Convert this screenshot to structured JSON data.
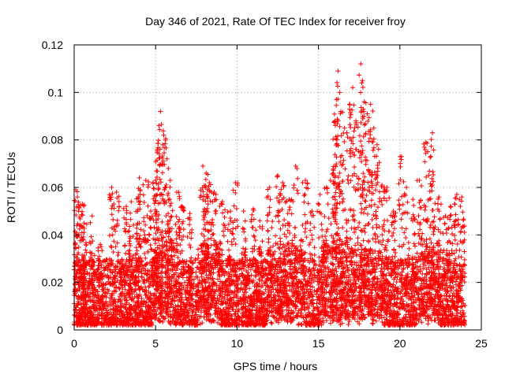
{
  "chart_data": {
    "type": "scatter",
    "title": "Day 346 of 2021, Rate Of TEC Index for receiver froy",
    "xlabel": "GPS time / hours",
    "ylabel": "ROTI / TECUs",
    "xlim": [
      0,
      25
    ],
    "ylim": [
      0,
      0.12
    ],
    "xticks": [
      0,
      5,
      10,
      15,
      20,
      25
    ],
    "xtick_labels": [
      "0",
      "5",
      "10",
      "15",
      "20",
      "25"
    ],
    "yticks": [
      0,
      0.02,
      0.04,
      0.06,
      0.08,
      0.1,
      0.12
    ],
    "ytick_labels": [
      "0",
      "0.02",
      "0.04",
      "0.06",
      "0.08",
      "0.1",
      "0.12"
    ],
    "grid": true,
    "marker": "+",
    "marker_color": "#ff0000",
    "x_data_range": [
      0,
      24
    ],
    "series": [
      {
        "name": "ROTI",
        "points": [
          [
            0.1,
            0.059
          ],
          [
            0.2,
            0.056
          ],
          [
            0.5,
            0.053
          ],
          [
            0.6,
            0.045
          ],
          [
            1.1,
            0.048
          ],
          [
            1.6,
            0.036
          ],
          [
            2.3,
            0.06
          ],
          [
            2.6,
            0.058
          ],
          [
            3.2,
            0.052
          ],
          [
            3.5,
            0.054
          ],
          [
            3.9,
            0.05
          ],
          [
            4.0,
            0.064
          ],
          [
            4.4,
            0.063
          ],
          [
            4.7,
            0.05
          ],
          [
            5.0,
            0.063
          ],
          [
            5.1,
            0.076
          ],
          [
            5.2,
            0.086
          ],
          [
            5.3,
            0.092
          ],
          [
            5.5,
            0.082
          ],
          [
            5.7,
            0.072
          ],
          [
            5.9,
            0.063
          ],
          [
            6.3,
            0.058
          ],
          [
            6.6,
            0.052
          ],
          [
            7.1,
            0.049
          ],
          [
            7.9,
            0.069
          ],
          [
            8.1,
            0.066
          ],
          [
            8.3,
            0.062
          ],
          [
            8.6,
            0.058
          ],
          [
            9.1,
            0.054
          ],
          [
            9.6,
            0.05
          ],
          [
            9.9,
            0.062
          ],
          [
            10.4,
            0.05
          ],
          [
            11.0,
            0.051
          ],
          [
            11.4,
            0.046
          ],
          [
            12.0,
            0.06
          ],
          [
            12.5,
            0.065
          ],
          [
            12.8,
            0.062
          ],
          [
            13.2,
            0.055
          ],
          [
            13.6,
            0.069
          ],
          [
            14.2,
            0.063
          ],
          [
            14.6,
            0.05
          ],
          [
            15.1,
            0.057
          ],
          [
            15.5,
            0.06
          ],
          [
            15.9,
            0.066
          ],
          [
            16.0,
            0.088
          ],
          [
            16.1,
            0.097
          ],
          [
            16.2,
            0.109
          ],
          [
            16.3,
            0.1
          ],
          [
            16.6,
            0.085
          ],
          [
            16.9,
            0.095
          ],
          [
            17.1,
            0.102
          ],
          [
            17.3,
            0.088
          ],
          [
            17.6,
            0.112
          ],
          [
            17.7,
            0.105
          ],
          [
            17.8,
            0.096
          ],
          [
            18.0,
            0.091
          ],
          [
            18.2,
            0.095
          ],
          [
            18.4,
            0.085
          ],
          [
            18.6,
            0.078
          ],
          [
            18.9,
            0.061
          ],
          [
            19.2,
            0.06
          ],
          [
            19.6,
            0.05
          ],
          [
            20.1,
            0.073
          ],
          [
            20.4,
            0.06
          ],
          [
            20.8,
            0.055
          ],
          [
            21.2,
            0.063
          ],
          [
            21.6,
            0.079
          ],
          [
            21.9,
            0.073
          ],
          [
            22.0,
            0.083
          ],
          [
            22.4,
            0.056
          ],
          [
            22.8,
            0.048
          ],
          [
            23.1,
            0.052
          ],
          [
            23.5,
            0.057
          ],
          [
            23.8,
            0.056
          ]
        ],
        "dense_band": {
          "description": "dense cloud of points filling the baseline for the full day",
          "y_min": 0.002,
          "y_typical_max": 0.03
        }
      }
    ]
  }
}
